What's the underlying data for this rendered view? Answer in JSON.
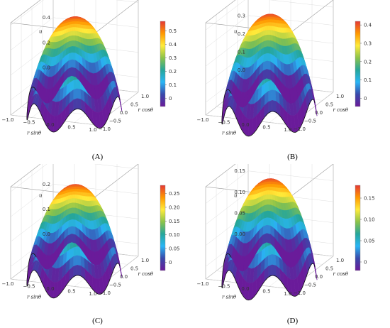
{
  "chart_data": [
    {
      "type": "surface",
      "panel_label": "(A)",
      "xlabel": "r sinθ",
      "ylabel": "r cosθ",
      "zlabel": "u",
      "x_ticks": [
        "−1.0",
        "−0.5",
        "0.0",
        "0.5",
        "1.0"
      ],
      "y_ticks": [
        "1.0",
        "0.5",
        "0.0",
        "−0.5",
        "−1.0"
      ],
      "z_ticks": [
        "0.0",
        "0.2",
        "0.4",
        "0.6"
      ],
      "z_values": [
        0.0,
        0.2,
        0.4,
        0.6
      ],
      "zlim": [
        -0.12,
        0.62
      ],
      "umax": 0.57,
      "colorbar_ticks": [
        "0.5",
        "0.4",
        "0.3",
        "0.2",
        "0.1",
        "0"
      ],
      "colorbar_values": [
        0.5,
        0.4,
        0.3,
        0.2,
        0.1,
        0.0
      ],
      "colorbar_range": [
        -0.06,
        0.57
      ]
    },
    {
      "type": "surface",
      "panel_label": "(B)",
      "xlabel": "r sinθ",
      "ylabel": "r cosθ",
      "zlabel": "u",
      "x_ticks": [
        "−1.0",
        "−0.5",
        "0.0",
        "0.5",
        "1.0"
      ],
      "y_ticks": [
        "1.0",
        "0.5",
        "0.0",
        "−0.5",
        "−1.0"
      ],
      "z_ticks": [
        "0.0",
        "0.1",
        "0.2",
        "0.3",
        "0.4"
      ],
      "z_values": [
        0.0,
        0.1,
        0.2,
        0.3,
        0.4
      ],
      "zlim": [
        -0.07,
        0.44
      ],
      "umax": 0.42,
      "colorbar_ticks": [
        "0.4",
        "0.3",
        "0.2",
        "0.1",
        "0"
      ],
      "colorbar_values": [
        0.4,
        0.3,
        0.2,
        0.1,
        0.0
      ],
      "colorbar_range": [
        -0.045,
        0.42
      ]
    },
    {
      "type": "surface",
      "panel_label": "(C)",
      "xlabel": "r sinθ",
      "ylabel": "r cosθ",
      "zlabel": "u",
      "x_ticks": [
        "−1.0",
        "−0.5",
        "0.0",
        "0.5",
        "1.0"
      ],
      "y_ticks": [
        "1.0",
        "0.5",
        "0.0",
        "−0.5",
        "−1.0"
      ],
      "z_ticks": [
        "0.0",
        "0.1",
        "0.2",
        "0.3"
      ],
      "z_values": [
        0.0,
        0.1,
        0.2,
        0.3
      ],
      "zlim": [
        -0.05,
        0.32
      ],
      "umax": 0.28,
      "colorbar_ticks": [
        "0.25",
        "0.20",
        "0.15",
        "0.10",
        "0.05",
        "0"
      ],
      "colorbar_values": [
        0.25,
        0.2,
        0.15,
        0.1,
        0.05,
        0.0
      ],
      "colorbar_range": [
        -0.03,
        0.28
      ]
    },
    {
      "type": "surface",
      "panel_label": "(D)",
      "xlabel": "r sinθ",
      "ylabel": "r cosθ",
      "zlabel": "u",
      "x_ticks": [
        "−1.0",
        "−0.5",
        "0.0",
        "0.5",
        "1.0"
      ],
      "y_ticks": [
        "1.0",
        "0.5",
        "0.0",
        "−0.5",
        "−1.0"
      ],
      "z_ticks": [
        "0.00",
        "0.05",
        "0.10",
        "0.15"
      ],
      "z_values": [
        0.0,
        0.05,
        0.1,
        0.15
      ],
      "zlim": [
        -0.03,
        0.19
      ],
      "umax": 0.18,
      "colorbar_ticks": [
        "0.15",
        "0.10",
        "0.05",
        "0"
      ],
      "colorbar_values": [
        0.15,
        0.1,
        0.05,
        0.0
      ],
      "colorbar_range": [
        -0.02,
        0.18
      ]
    }
  ],
  "colors": {
    "colormap": [
      "#6a1b9a",
      "#3949ab",
      "#29b6f6",
      "#26a69a",
      "#8bc34a",
      "#ffeb3b",
      "#ff9800",
      "#e53935"
    ]
  }
}
